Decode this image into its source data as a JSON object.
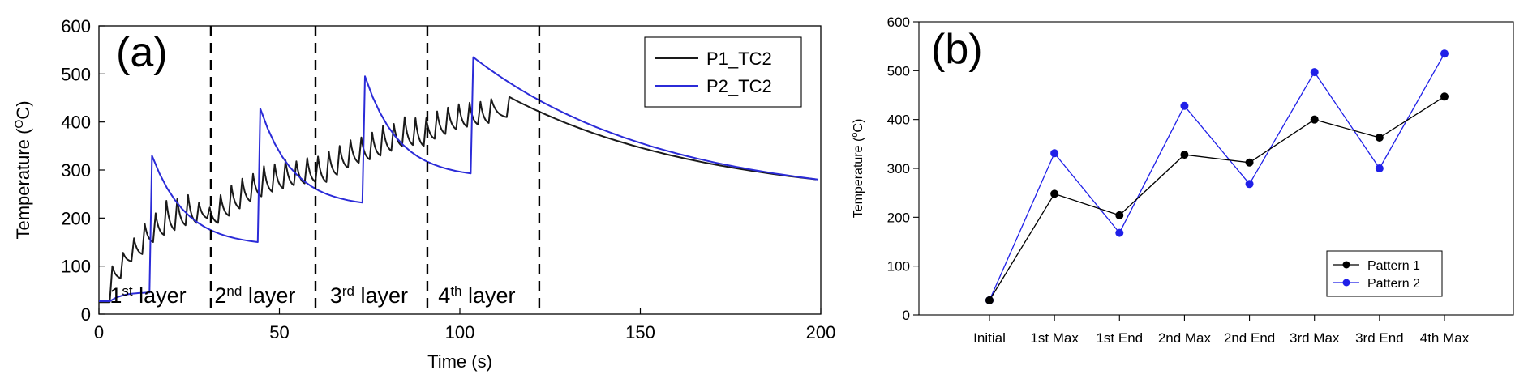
{
  "chart_data": [
    {
      "id": "a",
      "type": "line",
      "panel_label": "(a)",
      "xlabel": "Time (s)",
      "ylabel": {
        "pre": "Temperature (",
        "sup": "O",
        "post": "C)"
      },
      "xlim": [
        0,
        200
      ],
      "ylim": [
        0,
        600
      ],
      "xticks": [
        0,
        50,
        100,
        150,
        200
      ],
      "yticks": [
        0,
        100,
        200,
        300,
        400,
        500,
        600
      ],
      "grid": false,
      "legend": "top-right",
      "layer_boundaries": [
        31,
        60,
        91,
        122
      ],
      "layer_labels": [
        {
          "num": "1",
          "sup": "st",
          "text": " layer",
          "x": 3
        },
        {
          "num": "2",
          "sup": "nd",
          "text": " layer",
          "x": 32
        },
        {
          "num": "3",
          "sup": "rd",
          "text": " layer",
          "x": 64
        },
        {
          "num": "4",
          "sup": "th",
          "text": " layer",
          "x": 94
        }
      ],
      "series": [
        {
          "name": "P1_TC2",
          "color": "#1a1a1a",
          "decay": {
            "to": 234,
            "tau": 55
          },
          "peaks": [
            [
              3,
              25,
              100
            ],
            [
              6,
              75,
              128
            ],
            [
              9,
              110,
              158
            ],
            [
              12,
              125,
              188
            ],
            [
              15,
              150,
              210
            ],
            [
              18,
              165,
              236
            ],
            [
              21,
              175,
              240
            ],
            [
              24,
              185,
              248
            ],
            [
              27,
              190,
              232
            ],
            [
              30,
              200,
              222
            ],
            [
              33,
              190,
              248
            ],
            [
              36,
              205,
              268
            ],
            [
              39,
              220,
              282
            ],
            [
              42,
              235,
              292
            ],
            [
              45,
              245,
              308
            ],
            [
              48,
              255,
              312
            ],
            [
              51,
              262,
              320
            ],
            [
              54,
              268,
              318
            ],
            [
              57,
              272,
              325
            ],
            [
              60,
              275,
              328
            ],
            [
              63,
              275,
              338
            ],
            [
              66,
              290,
              350
            ],
            [
              69,
              305,
              362
            ],
            [
              72,
              315,
              368
            ],
            [
              75,
              322,
              378
            ],
            [
              78,
              330,
              392
            ],
            [
              81,
              340,
              396
            ],
            [
              84,
              350,
              410
            ],
            [
              87,
              352,
              408
            ],
            [
              90,
              350,
              408
            ],
            [
              93,
              365,
              422
            ],
            [
              96,
              375,
              430
            ],
            [
              99,
              385,
              437
            ],
            [
              102,
              390,
              440
            ],
            [
              105,
              395,
              442
            ],
            [
              108,
              398,
              448
            ],
            [
              113,
              410,
              452
            ]
          ]
        },
        {
          "name": "P2_TC2",
          "color": "#2b2bd8",
          "decay": {
            "to": 232,
            "tau": 52
          },
          "peaks": [
            [
              3,
              27,
              30
            ],
            [
              14,
              45,
              330
            ],
            [
              44,
              150,
              428
            ],
            [
              73,
              232,
              495
            ],
            [
              103,
              293,
              535
            ]
          ]
        }
      ]
    },
    {
      "id": "b",
      "type": "line",
      "panel_label": "(b)",
      "ylabel": {
        "pre": "Temperature (",
        "sup": "o",
        "post": "C)"
      },
      "xlabel": "",
      "categories": [
        "Initial",
        "1st Max",
        "1st End",
        "2nd Max",
        "2nd End",
        "3rd Max",
        "3rd End",
        "4th Max"
      ],
      "ylim": [
        0,
        600
      ],
      "yticks": [
        0,
        100,
        200,
        300,
        400,
        500,
        600
      ],
      "grid": false,
      "legend": "bottom-right",
      "series": [
        {
          "name": "Pattern 1",
          "color": "#000000",
          "values": [
            30,
            248,
            204,
            328,
            312,
            400,
            363,
            447
          ]
        },
        {
          "name": "Pattern 2",
          "color": "#1f1fe8",
          "values": [
            30,
            331,
            168,
            428,
            268,
            497,
            300,
            535
          ]
        }
      ]
    }
  ]
}
